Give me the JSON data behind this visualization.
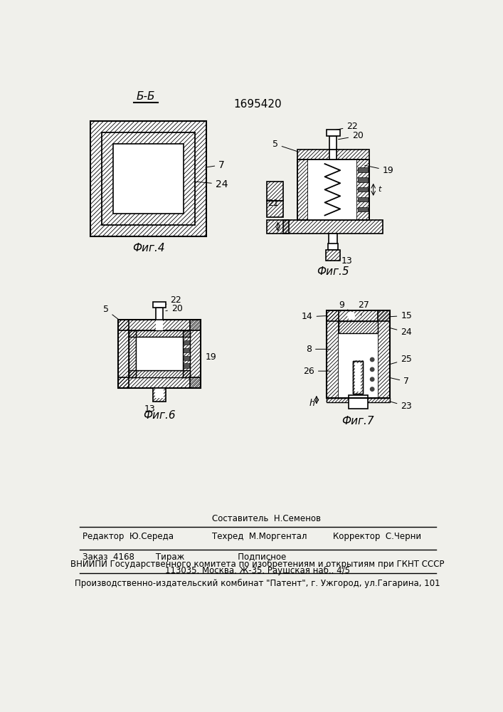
{
  "title": "1695420",
  "bg_color": "#f0f0eb",
  "fig4_label": "Фиг.4",
  "fig5_label": "Фиг.5",
  "fig6_label": "Фиг.6",
  "fig7_label": "Фиг.7",
  "section_label": "Б-Б",
  "footer_line1_left": "Редактор  Ю.Середа",
  "footer_line1_mid": "Техред  М.Моргентал",
  "footer_line1_mid2": "Составитель  Н.Семенов",
  "footer_line1_right": "Корректор  С.Черни",
  "footer_line2": "Заказ  4168        Тираж                    Подписное",
  "footer_line3": "ВНИИПИ Государственного комитета по изобретениям и открытиям при ГКНТ СССР",
  "footer_line4": "113035. Москва. Ж-35. Раушская наб.. 4/5",
  "footer_line5": "Производственно-издательский комбинат \"Патент\", г. Ужгород, ул.Гагарина, 101"
}
